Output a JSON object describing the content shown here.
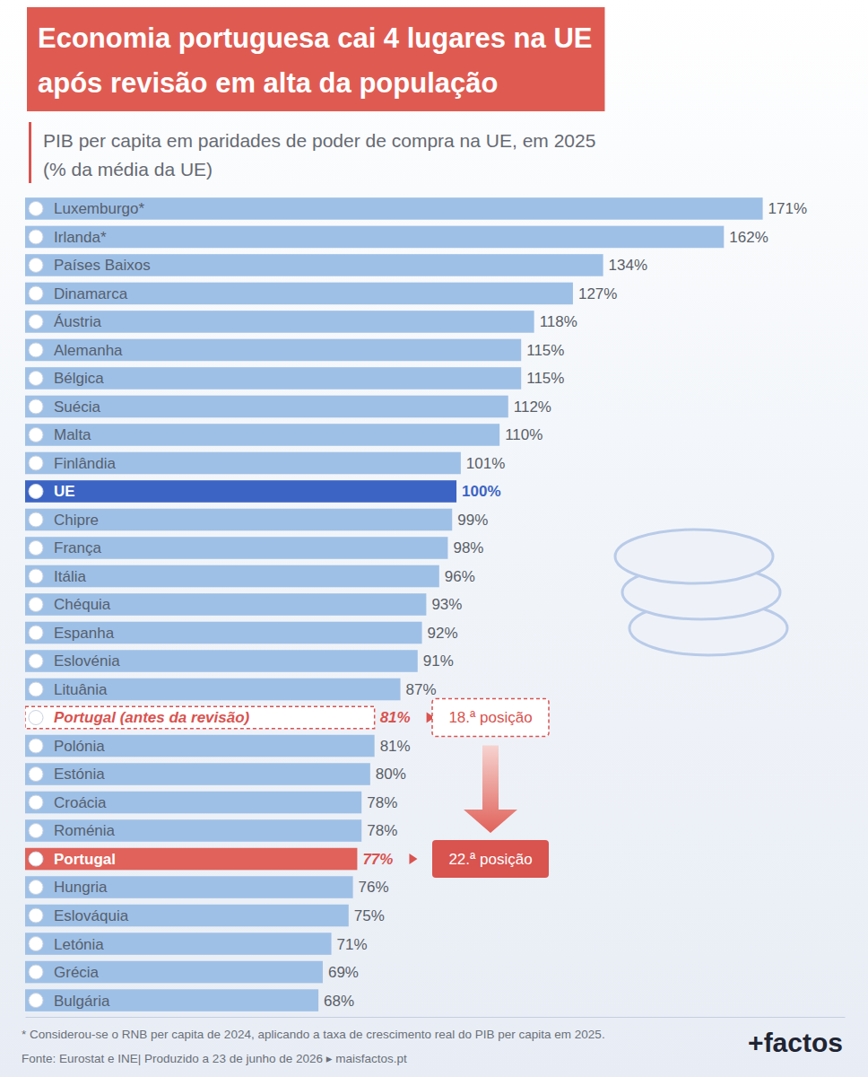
{
  "chart_data": {
    "type": "bar",
    "orientation": "horizontal",
    "title": [
      "Economia portuguesa cai 4 lugares na UE",
      "após revisão em alta da população"
    ],
    "subtitle": [
      "PIB per capita em paridades de poder de compra na UE, em 2025",
      "(% da média da UE)"
    ],
    "categories": [
      "Luxemburgo*",
      "Irlanda*",
      "Países Baixos",
      "Dinamarca",
      "Áustria",
      "Alemanha",
      "Bélgica",
      "Suécia",
      "Malta",
      "Finlândia",
      "UE",
      "Chipre",
      "França",
      "Itália",
      "Chéquia",
      "Espanha",
      "Eslovénia",
      "Lituânia",
      "Portugal (antes da revisão)",
      "Polónia",
      "Estónia",
      "Croácia",
      "Roménia",
      "Portugal",
      "Hungria",
      "Eslováquia",
      "Letónia",
      "Grécia",
      "Bulgária"
    ],
    "values": [
      171,
      162,
      134,
      127,
      118,
      115,
      115,
      112,
      110,
      101,
      100,
      99,
      98,
      96,
      93,
      92,
      91,
      87,
      81,
      81,
      80,
      78,
      78,
      77,
      76,
      75,
      71,
      69,
      68
    ],
    "value_labels": [
      "171%",
      "162%",
      "134%",
      "127%",
      "118%",
      "115%",
      "115%",
      "112%",
      "110%",
      "101%",
      "100%",
      "99%",
      "98%",
      "96%",
      "93%",
      "92%",
      "91%",
      "87%",
      "81%",
      "81%",
      "80%",
      "78%",
      "78%",
      "77%",
      "76%",
      "75%",
      "71%",
      "69%",
      "68%"
    ],
    "colors": [
      "#9fc0e6",
      "#9fc0e6",
      "#9fc0e6",
      "#9fc0e6",
      "#9fc0e6",
      "#9fc0e6",
      "#9fc0e6",
      "#9fc0e6",
      "#9fc0e6",
      "#9fc0e6",
      "#3c64c4",
      "#9fc0e6",
      "#9fc0e6",
      "#9fc0e6",
      "#9fc0e6",
      "#9fc0e6",
      "#9fc0e6",
      "#9fc0e6",
      "#ffffff",
      "#9fc0e6",
      "#9fc0e6",
      "#9fc0e6",
      "#9fc0e6",
      "#e0625a",
      "#9fc0e6",
      "#9fc0e6",
      "#9fc0e6",
      "#9fc0e6",
      "#9fc0e6"
    ],
    "xlim": [
      0,
      190
    ],
    "tick_labels": false,
    "grid": false,
    "data_labels": true,
    "annotations": [
      {
        "text": "18.ª posição",
        "category": "Portugal (antes da revisão)"
      },
      {
        "text": "22.ª posição",
        "category": "Portugal"
      }
    ],
    "footnote": "* Considerou-se o RNB per capita de 2024, aplicando a taxa de crescimento real do PIB per capita em 2025.",
    "source": "Fonte: Eurostat e INE| Produzido a 23 de junho de 2026 ▸ maisfactos.pt",
    "logo": "+factos"
  }
}
